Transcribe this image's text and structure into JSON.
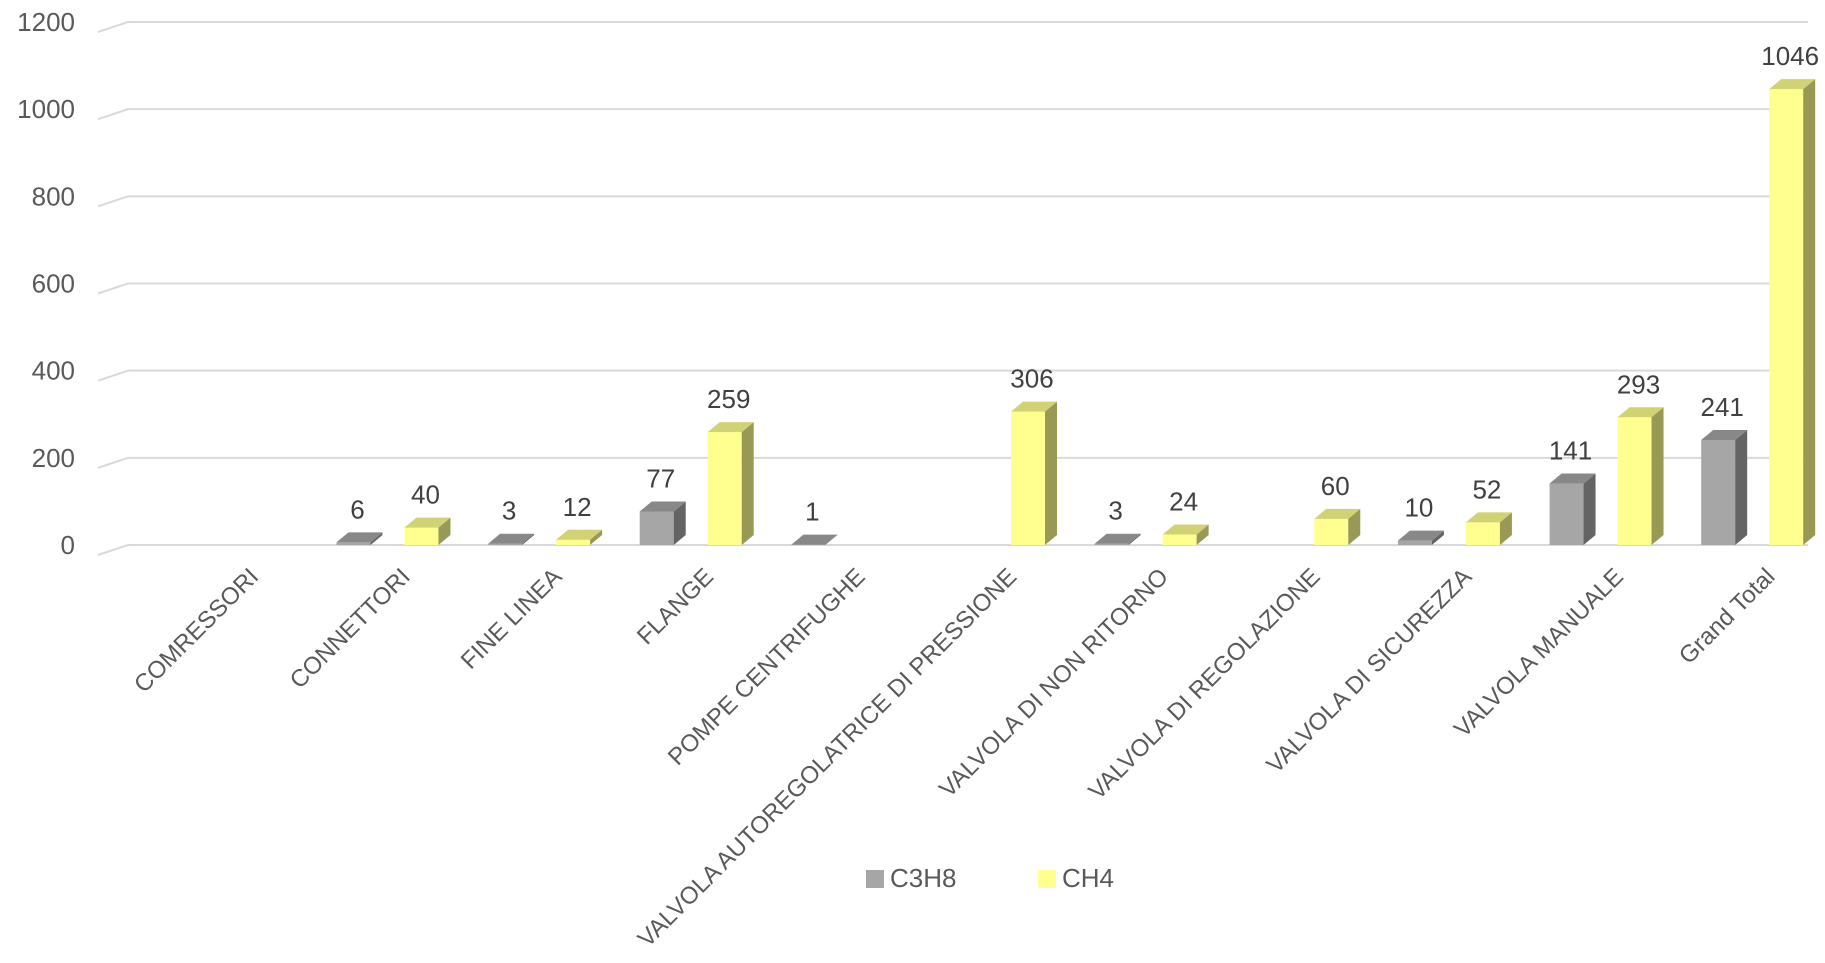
{
  "chart_data": {
    "type": "bar",
    "title": "",
    "xlabel": "",
    "ylabel": "",
    "ylim": [
      0,
      1200
    ],
    "yticks": [
      0,
      200,
      400,
      600,
      800,
      1000,
      1200
    ],
    "grid": true,
    "legend_position": "bottom",
    "categories": [
      "COMRESSORI",
      "CONNETTORI",
      "FINE LINEA",
      "FLANGE",
      "POMPE CENTRIFUGHE",
      "VALVOLA AUTOREGOLATRICE DI PRESSIONE",
      "VALVOLA DI NON RITORNO",
      "VALVOLA DI REGOLAZIONE",
      "VALVOLA DI SICUREZZA",
      "VALVOLA MANUALE",
      "Grand Total"
    ],
    "series": [
      {
        "name": "C3H8",
        "color": "#a6a6a6",
        "values": [
          null,
          6,
          3,
          77,
          1,
          null,
          3,
          null,
          10,
          141,
          241
        ]
      },
      {
        "name": "CH4",
        "color": "#ffff8f",
        "values": [
          null,
          40,
          12,
          259,
          null,
          306,
          24,
          60,
          52,
          293,
          1046
        ]
      }
    ]
  }
}
